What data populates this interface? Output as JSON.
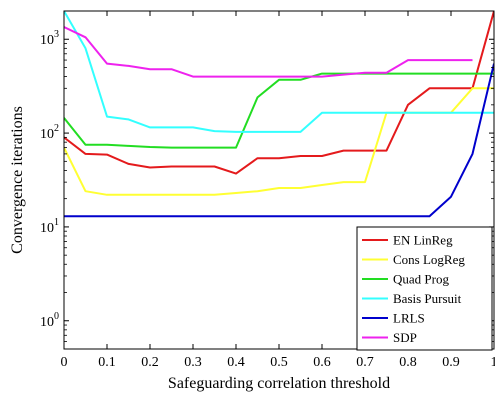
{
  "chart_data": {
    "type": "line",
    "xlabel": "Safeguarding correlation threshold",
    "ylabel": "Convergence iterations",
    "xlim": [
      0,
      1
    ],
    "ylim": [
      0.5,
      2000
    ],
    "yscale": "log",
    "grid": false,
    "legend_position": "bottom-right",
    "x_ticks": [
      0,
      0.1,
      0.2,
      0.3,
      0.4,
      0.5,
      0.6,
      0.7,
      0.8,
      0.9,
      1
    ],
    "x_tick_labels": [
      "0",
      "0.1",
      "0.2",
      "0.3",
      "0.4",
      "0.5",
      "0.6",
      "0.7",
      "0.8",
      "0.9",
      "1"
    ],
    "y_ticks": [
      1,
      10,
      100,
      1000
    ],
    "y_tick_labels": [
      {
        "base": "10",
        "exp": "0"
      },
      {
        "base": "10",
        "exp": "1"
      },
      {
        "base": "10",
        "exp": "2"
      },
      {
        "base": "10",
        "exp": "3"
      }
    ],
    "series": [
      {
        "name": "EN LinReg",
        "color": "#e41a1c",
        "points": [
          [
            0,
            90
          ],
          [
            0.05,
            60
          ],
          [
            0.1,
            59
          ],
          [
            0.15,
            47
          ],
          [
            0.2,
            43
          ],
          [
            0.25,
            44
          ],
          [
            0.3,
            44
          ],
          [
            0.35,
            44
          ],
          [
            0.4,
            37
          ],
          [
            0.45,
            54
          ],
          [
            0.5,
            54
          ],
          [
            0.55,
            57
          ],
          [
            0.6,
            57
          ],
          [
            0.65,
            65
          ],
          [
            0.7,
            65
          ],
          [
            0.75,
            65
          ],
          [
            0.8,
            200
          ],
          [
            0.85,
            300
          ],
          [
            0.9,
            300
          ],
          [
            0.95,
            300
          ],
          [
            1,
            2000
          ]
        ]
      },
      {
        "name": "Cons LogReg",
        "color": "#ffff33",
        "points": [
          [
            0,
            70
          ],
          [
            0.05,
            24
          ],
          [
            0.1,
            22
          ],
          [
            0.15,
            22
          ],
          [
            0.2,
            22
          ],
          [
            0.25,
            22
          ],
          [
            0.3,
            22
          ],
          [
            0.35,
            22
          ],
          [
            0.4,
            23
          ],
          [
            0.45,
            24
          ],
          [
            0.5,
            26
          ],
          [
            0.55,
            26
          ],
          [
            0.6,
            28
          ],
          [
            0.65,
            30
          ],
          [
            0.7,
            30
          ],
          [
            0.75,
            165
          ],
          [
            0.8,
            165
          ],
          [
            0.85,
            165
          ],
          [
            0.9,
            165
          ],
          [
            0.95,
            300
          ],
          [
            1,
            300
          ]
        ]
      },
      {
        "name": "Quad Prog",
        "color": "#22dd22",
        "points": [
          [
            0,
            145
          ],
          [
            0.05,
            75
          ],
          [
            0.1,
            75
          ],
          [
            0.15,
            73
          ],
          [
            0.2,
            71
          ],
          [
            0.25,
            70
          ],
          [
            0.3,
            70
          ],
          [
            0.35,
            70
          ],
          [
            0.4,
            70
          ],
          [
            0.45,
            240
          ],
          [
            0.5,
            370
          ],
          [
            0.55,
            370
          ],
          [
            0.6,
            430
          ],
          [
            0.65,
            430
          ],
          [
            0.7,
            430
          ],
          [
            0.75,
            430
          ],
          [
            0.8,
            430
          ],
          [
            0.85,
            430
          ],
          [
            0.9,
            430
          ],
          [
            0.95,
            430
          ],
          [
            1,
            430
          ]
        ]
      },
      {
        "name": "Basis Pursuit",
        "color": "#33ffff",
        "points": [
          [
            0,
            2000
          ],
          [
            0.05,
            800
          ],
          [
            0.1,
            150
          ],
          [
            0.15,
            140
          ],
          [
            0.2,
            115
          ],
          [
            0.25,
            115
          ],
          [
            0.3,
            115
          ],
          [
            0.35,
            105
          ],
          [
            0.4,
            103
          ],
          [
            0.45,
            103
          ],
          [
            0.5,
            103
          ],
          [
            0.55,
            103
          ],
          [
            0.6,
            165
          ],
          [
            0.65,
            165
          ],
          [
            0.7,
            165
          ],
          [
            0.75,
            165
          ],
          [
            0.8,
            165
          ],
          [
            0.85,
            165
          ],
          [
            0.9,
            165
          ],
          [
            0.95,
            165
          ],
          [
            1,
            165
          ]
        ]
      },
      {
        "name": "LRLS",
        "color": "#0000cc",
        "points": [
          [
            0,
            13
          ],
          [
            0.05,
            13
          ],
          [
            0.1,
            13
          ],
          [
            0.15,
            13
          ],
          [
            0.2,
            13
          ],
          [
            0.25,
            13
          ],
          [
            0.3,
            13
          ],
          [
            0.35,
            13
          ],
          [
            0.4,
            13
          ],
          [
            0.45,
            13
          ],
          [
            0.5,
            13
          ],
          [
            0.55,
            13
          ],
          [
            0.6,
            13
          ],
          [
            0.65,
            13
          ],
          [
            0.7,
            13
          ],
          [
            0.75,
            13
          ],
          [
            0.8,
            13
          ],
          [
            0.85,
            13
          ],
          [
            0.9,
            21
          ],
          [
            0.95,
            60
          ],
          [
            1,
            550
          ]
        ]
      },
      {
        "name": "SDP",
        "color": "#ee22ee",
        "points": [
          [
            0,
            1350
          ],
          [
            0.05,
            1050
          ],
          [
            0.1,
            550
          ],
          [
            0.15,
            520
          ],
          [
            0.2,
            480
          ],
          [
            0.25,
            480
          ],
          [
            0.3,
            400
          ],
          [
            0.35,
            400
          ],
          [
            0.4,
            400
          ],
          [
            0.45,
            400
          ],
          [
            0.5,
            400
          ],
          [
            0.55,
            400
          ],
          [
            0.6,
            400
          ],
          [
            0.65,
            420
          ],
          [
            0.7,
            440
          ],
          [
            0.75,
            440
          ],
          [
            0.8,
            600
          ],
          [
            0.85,
            600
          ],
          [
            0.9,
            600
          ],
          [
            0.95,
            600
          ]
        ]
      }
    ]
  }
}
